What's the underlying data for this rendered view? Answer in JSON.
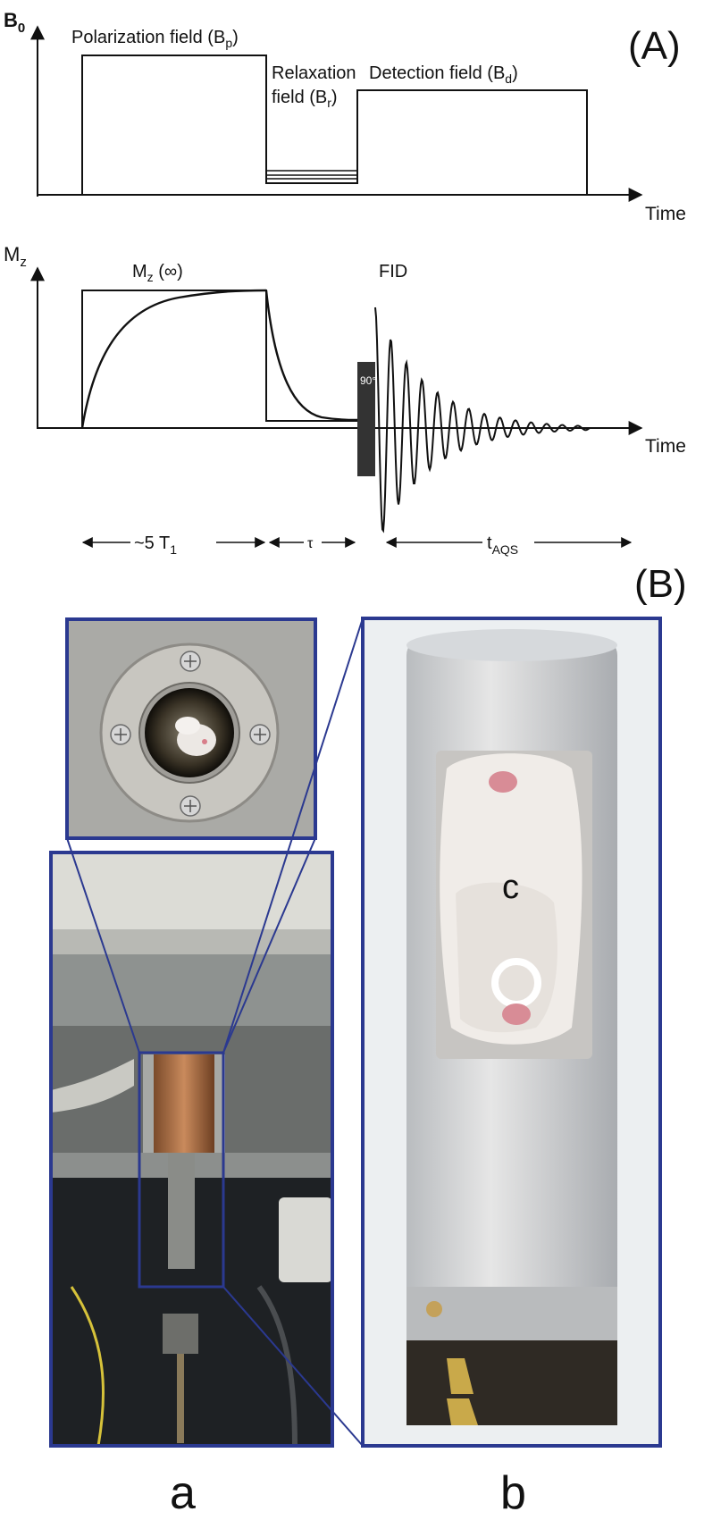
{
  "panel_a": {
    "label": "(A)",
    "top_plot": {
      "y_axis_base": "B",
      "y_axis_sub": "0",
      "x_axis_label": "Time",
      "polarization_label": "Polarization field (B",
      "polarization_sub": "p",
      "relaxation_line1": "Relaxation",
      "relaxation_line2": "field (B",
      "relaxation_sub": "r",
      "detection_label": "Detection field (B",
      "detection_sub": "d",
      "close_paren": ")"
    },
    "bottom_plot": {
      "y_axis_base": "M",
      "y_axis_sub": "z",
      "x_axis_label": "Time",
      "mz_inf_base": "M",
      "mz_inf_sub": "z",
      "mz_inf_suffix": " (∞)",
      "fid_label": "FID",
      "pulse_label": "90°"
    },
    "timing": {
      "t1_label": "~5 T",
      "t1_sub": "1",
      "tau_label": "τ",
      "taqs_base": "t",
      "taqs_sub": "AQS"
    }
  },
  "panel_b": {
    "label": "(B)",
    "letter_c": "c",
    "caption_a": "a",
    "caption_b": "b"
  },
  "colors": {
    "frame": "#2b3990",
    "line": "#111111",
    "pulse": "#333333"
  }
}
